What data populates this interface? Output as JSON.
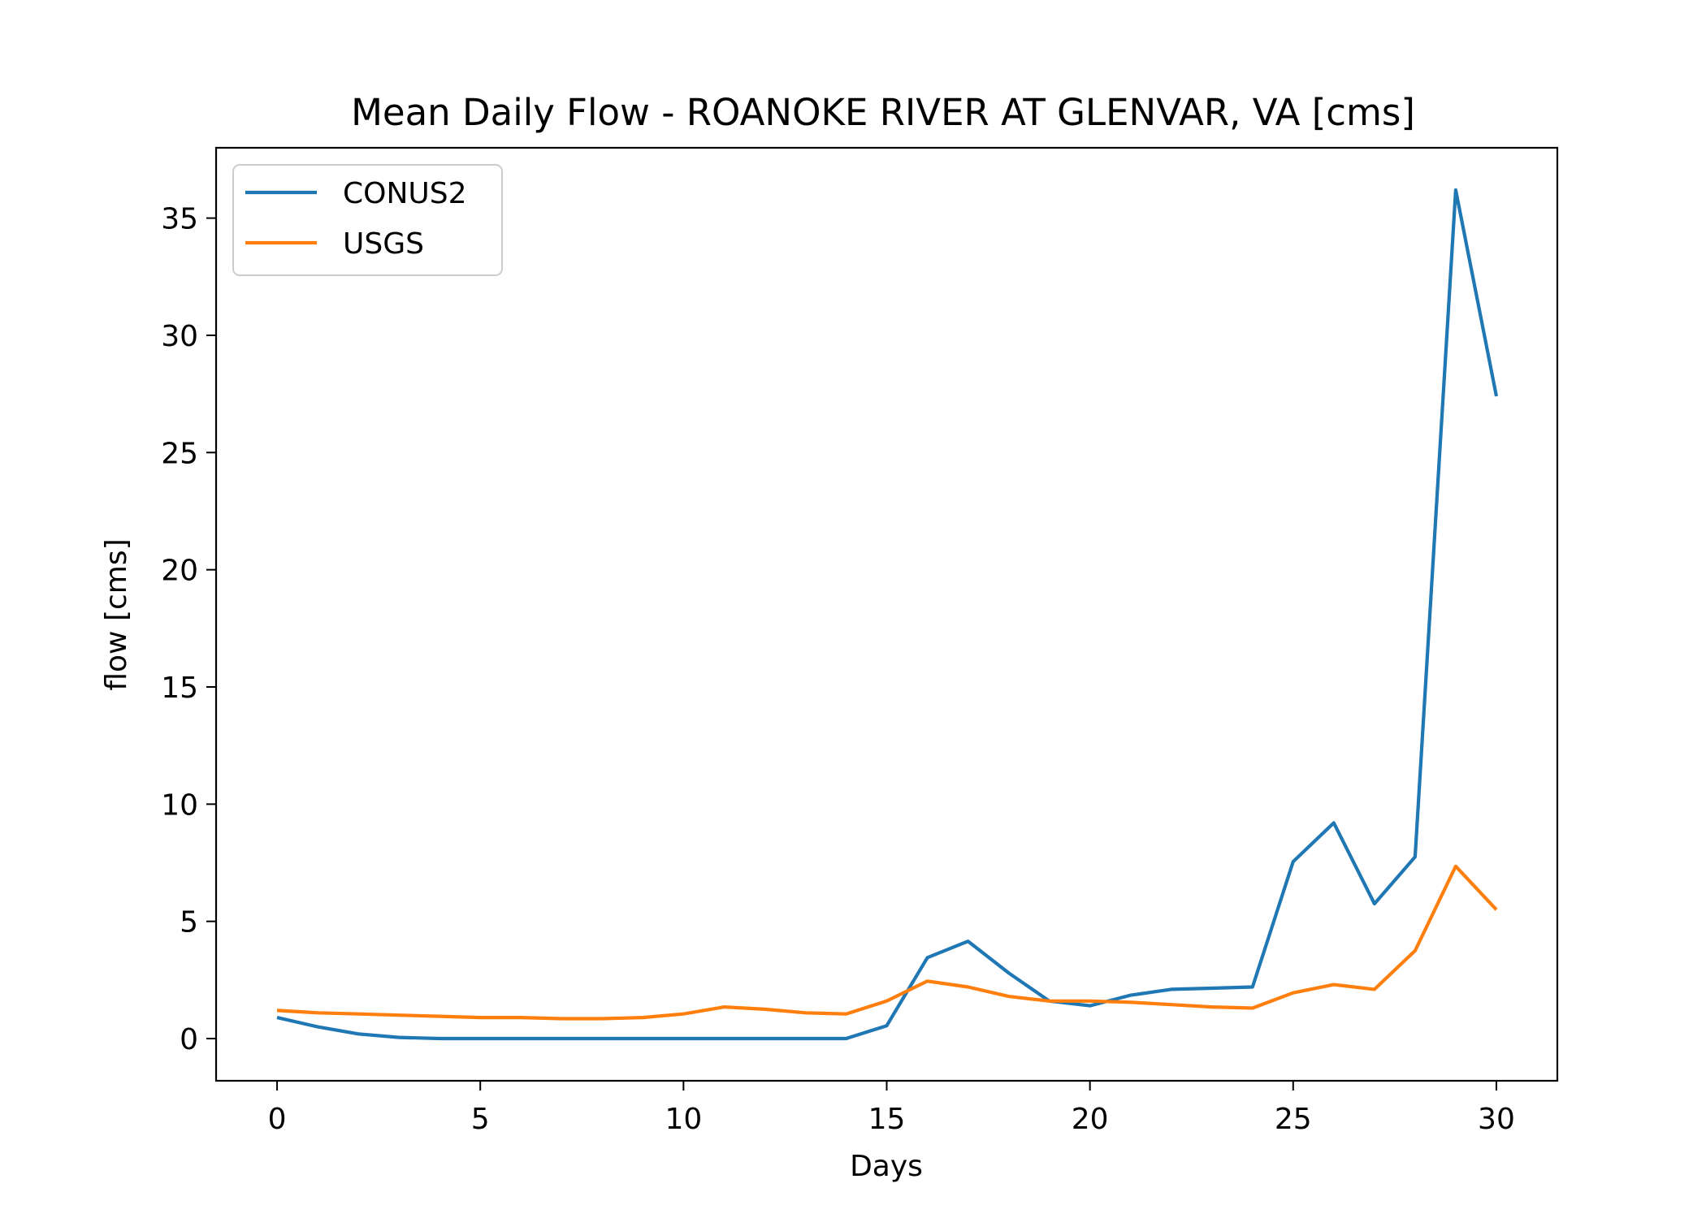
{
  "chart_data": {
    "type": "line",
    "title": "Mean Daily Flow - ROANOKE RIVER AT GLENVAR, VA [cms]",
    "xlabel": "Days",
    "ylabel": "flow [cms]",
    "xlim": [
      -1.5,
      31.5
    ],
    "ylim": [
      -1.8,
      38.0
    ],
    "xticks": [
      0,
      5,
      10,
      15,
      20,
      25,
      30
    ],
    "yticks": [
      0,
      5,
      10,
      15,
      20,
      25,
      30,
      35
    ],
    "grid": false,
    "legend": "top-left",
    "x": [
      0,
      1,
      2,
      3,
      4,
      5,
      6,
      7,
      8,
      9,
      10,
      11,
      12,
      13,
      14,
      15,
      16,
      17,
      18,
      19,
      20,
      21,
      22,
      23,
      24,
      25,
      26,
      27,
      28,
      29,
      30
    ],
    "series": [
      {
        "name": "CONUS2",
        "color": "#1f77b4",
        "values": [
          0.9,
          0.5,
          0.2,
          0.05,
          0.0,
          0.0,
          0.0,
          0.0,
          0.0,
          0.0,
          0.0,
          0.0,
          0.0,
          0.0,
          0.0,
          0.55,
          3.45,
          4.15,
          2.8,
          1.6,
          1.4,
          1.85,
          2.1,
          2.15,
          2.2,
          7.55,
          9.2,
          5.75,
          7.75,
          36.2,
          27.4
        ]
      },
      {
        "name": "USGS",
        "color": "#ff7f0e",
        "values": [
          1.2,
          1.1,
          1.05,
          1.0,
          0.95,
          0.9,
          0.9,
          0.85,
          0.85,
          0.9,
          1.05,
          1.35,
          1.25,
          1.1,
          1.05,
          1.6,
          2.45,
          2.2,
          1.8,
          1.6,
          1.6,
          1.55,
          1.45,
          1.35,
          1.3,
          1.95,
          2.3,
          2.1,
          3.75,
          7.35,
          5.5
        ]
      }
    ]
  }
}
